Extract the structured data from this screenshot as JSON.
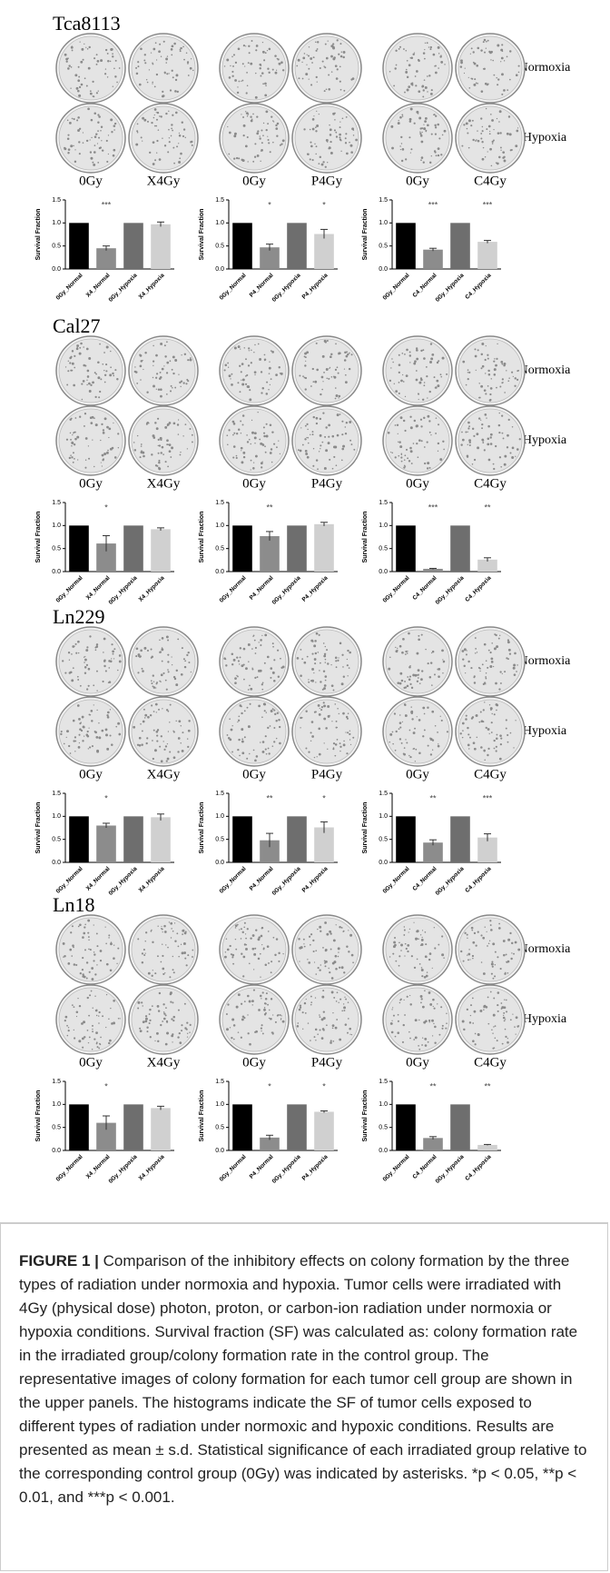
{
  "figure": {
    "panels": [
      {
        "cell_line": "Tca8113",
        "row_labels": [
          "Normoxia",
          "Hypoxia"
        ],
        "dose_labels": [
          [
            "0Gy",
            "X4Gy"
          ],
          [
            "0Gy",
            "P4Gy"
          ],
          [
            "0Gy",
            "C4Gy"
          ]
        ]
      },
      {
        "cell_line": "Cal27",
        "row_labels": [
          "Normoxia",
          "Hypoxia"
        ],
        "dose_labels": [
          [
            "0Gy",
            "X4Gy"
          ],
          [
            "0Gy",
            "P4Gy"
          ],
          [
            "0Gy",
            "C4Gy"
          ]
        ]
      },
      {
        "cell_line": "Ln229",
        "row_labels": [
          "Normoxia",
          "Hypoxia"
        ],
        "dose_labels": [
          [
            "0Gy",
            "X4Gy"
          ],
          [
            "0Gy",
            "P4Gy"
          ],
          [
            "0Gy",
            "C4Gy"
          ]
        ]
      },
      {
        "cell_line": "Ln18",
        "row_labels": [
          "Normoxia",
          "Hypoxia"
        ],
        "dose_labels": [
          [
            "0Gy",
            "X4Gy"
          ],
          [
            "0Gy",
            "P4Gy"
          ],
          [
            "0Gy",
            "C4Gy"
          ]
        ]
      }
    ]
  },
  "chart_data": [
    {
      "type": "bar",
      "y_label": "Survival Fraction",
      "categories": [
        "0Gy_Normal",
        "X4_Normal",
        "0Gy_Hypoxia",
        "X4_Hypoxia"
      ],
      "values": [
        1.0,
        0.45,
        1.0,
        0.97
      ],
      "errors": [
        null,
        0.05,
        null,
        0.05
      ],
      "significance": [
        null,
        "***",
        null,
        null
      ],
      "colors": [
        "#000000",
        "#8c8c8c",
        "#6e6e6e",
        "#d0d0d0"
      ],
      "ylim": [
        0,
        1.5
      ],
      "yticks": [
        {
          "value": 0,
          "label": "0.0"
        },
        {
          "value": 0.5,
          "label": "0.5"
        },
        {
          "value": 1,
          "label": "1.0"
        },
        {
          "value": 1.5,
          "label": "1.5"
        }
      ]
    },
    {
      "type": "bar",
      "y_label": "Survival Fraction",
      "categories": [
        "0Gy_Normal",
        "P4_Normal",
        "0Gy_Hypoxia",
        "P4_Hypoxia"
      ],
      "values": [
        1.0,
        0.47,
        1.0,
        0.76
      ],
      "errors": [
        null,
        0.07,
        null,
        0.1
      ],
      "significance": [
        null,
        "*",
        null,
        "*"
      ],
      "colors": [
        "#000000",
        "#8c8c8c",
        "#6e6e6e",
        "#d0d0d0"
      ],
      "ylim": [
        0,
        1.5
      ],
      "yticks": [
        {
          "value": 0,
          "label": "0.0"
        },
        {
          "value": 0.5,
          "label": "0.5"
        },
        {
          "value": 1,
          "label": "1.0"
        },
        {
          "value": 1.5,
          "label": "1.5"
        }
      ]
    },
    {
      "type": "bar",
      "y_label": "Survival Fraction",
      "categories": [
        "0Gy_Normal",
        "C4_Normal",
        "0Gy_Hypoxia",
        "C4_Hypoxia"
      ],
      "values": [
        1.0,
        0.42,
        1.0,
        0.59
      ],
      "errors": [
        null,
        0.03,
        null,
        0.03
      ],
      "significance": [
        null,
        "***",
        null,
        "***"
      ],
      "colors": [
        "#000000",
        "#8c8c8c",
        "#6e6e6e",
        "#d0d0d0"
      ],
      "ylim": [
        0,
        1.5
      ],
      "yticks": [
        {
          "value": 0,
          "label": "0.0"
        },
        {
          "value": 0.5,
          "label": "0.5"
        },
        {
          "value": 1,
          "label": "1.0"
        },
        {
          "value": 1.5,
          "label": "1.5"
        }
      ]
    },
    {
      "type": "bar",
      "y_label": "Survival Fraction",
      "categories": [
        "0Gy_Normal",
        "X4_Normal",
        "0Gy_Hypoxia",
        "X4_Hypoxia"
      ],
      "values": [
        1.0,
        0.61,
        1.0,
        0.92
      ],
      "errors": [
        null,
        0.17,
        null,
        0.03
      ],
      "significance": [
        null,
        "*",
        null,
        null
      ],
      "colors": [
        "#000000",
        "#8c8c8c",
        "#6e6e6e",
        "#d0d0d0"
      ],
      "ylim": [
        0,
        1.5
      ],
      "yticks": [
        {
          "value": 0,
          "label": "0.0"
        },
        {
          "value": 0.5,
          "label": "0.5"
        },
        {
          "value": 1,
          "label": "1.0"
        },
        {
          "value": 1.5,
          "label": "1.5"
        }
      ]
    },
    {
      "type": "bar",
      "y_label": "Survival Fraction",
      "categories": [
        "0Gy_Normal",
        "P4_Normal",
        "0Gy_Hypoxia",
        "P4_Hypoxia"
      ],
      "values": [
        1.0,
        0.77,
        1.0,
        1.03
      ],
      "errors": [
        null,
        0.1,
        null,
        0.04
      ],
      "significance": [
        null,
        "**",
        null,
        null
      ],
      "colors": [
        "#000000",
        "#8c8c8c",
        "#6e6e6e",
        "#d0d0d0"
      ],
      "ylim": [
        0,
        1.5
      ],
      "yticks": [
        {
          "value": 0,
          "label": "0.0"
        },
        {
          "value": 0.5,
          "label": "0.5"
        },
        {
          "value": 1,
          "label": "1.0"
        },
        {
          "value": 1.5,
          "label": "1.5"
        }
      ]
    },
    {
      "type": "bar",
      "y_label": "Survival Fraction",
      "categories": [
        "0Gy_Normal",
        "C4_Normal",
        "0Gy_Hypoxia",
        "C4_Hypoxia"
      ],
      "values": [
        1.0,
        0.06,
        1.0,
        0.26
      ],
      "errors": [
        null,
        0.01,
        null,
        0.04
      ],
      "significance": [
        null,
        "***",
        null,
        "**"
      ],
      "colors": [
        "#000000",
        "#8c8c8c",
        "#6e6e6e",
        "#d0d0d0"
      ],
      "ylim": [
        0,
        1.5
      ],
      "yticks": [
        {
          "value": 0,
          "label": "0.0"
        },
        {
          "value": 0.5,
          "label": "0.5"
        },
        {
          "value": 1,
          "label": "1.0"
        },
        {
          "value": 1.5,
          "label": "1.5"
        }
      ]
    },
    {
      "type": "bar",
      "y_label": "Survival Fraction",
      "categories": [
        "0Gy_Normal",
        "X4_Normal",
        "0Gy_Hypoxia",
        "X4_Hypoxia"
      ],
      "values": [
        1.0,
        0.8,
        1.0,
        0.98
      ],
      "errors": [
        null,
        0.05,
        null,
        0.07
      ],
      "significance": [
        null,
        "*",
        null,
        null
      ],
      "colors": [
        "#000000",
        "#8c8c8c",
        "#6e6e6e",
        "#d0d0d0"
      ],
      "ylim": [
        0,
        1.5
      ],
      "yticks": [
        {
          "value": 0,
          "label": "0.0"
        },
        {
          "value": 0.5,
          "label": "0.5"
        },
        {
          "value": 1,
          "label": "1.0"
        },
        {
          "value": 1.5,
          "label": "1.5"
        }
      ]
    },
    {
      "type": "bar",
      "y_label": "Survival Fraction",
      "categories": [
        "0Gy_Normal",
        "P4_Normal",
        "0Gy_Hypoxia",
        "P4_Hypoxia"
      ],
      "values": [
        1.0,
        0.48,
        1.0,
        0.76
      ],
      "errors": [
        null,
        0.15,
        null,
        0.12
      ],
      "significance": [
        null,
        "**",
        null,
        "*"
      ],
      "colors": [
        "#000000",
        "#8c8c8c",
        "#6e6e6e",
        "#d0d0d0"
      ],
      "ylim": [
        0,
        1.5
      ],
      "yticks": [
        {
          "value": 0,
          "label": "0.0"
        },
        {
          "value": 0.5,
          "label": "0.5"
        },
        {
          "value": 1,
          "label": "1.0"
        },
        {
          "value": 1.5,
          "label": "1.5"
        }
      ]
    },
    {
      "type": "bar",
      "y_label": "Survival Fraction",
      "categories": [
        "0Gy_Normal",
        "C4_Normal",
        "0Gy_Hypoxia",
        "C4_Hypoxia"
      ],
      "values": [
        1.0,
        0.43,
        1.0,
        0.54
      ],
      "errors": [
        null,
        0.06,
        null,
        0.08
      ],
      "significance": [
        null,
        "**",
        null,
        "***"
      ],
      "colors": [
        "#000000",
        "#8c8c8c",
        "#6e6e6e",
        "#d0d0d0"
      ],
      "ylim": [
        0,
        1.5
      ],
      "yticks": [
        {
          "value": 0,
          "label": "0.0"
        },
        {
          "value": 0.5,
          "label": "0.5"
        },
        {
          "value": 1,
          "label": "1.0"
        },
        {
          "value": 1.5,
          "label": "1.5"
        }
      ]
    },
    {
      "type": "bar",
      "y_label": "Survival Fraction",
      "categories": [
        "0Gy_Normal",
        "X4_Normal",
        "0Gy_Hypoxia",
        "X4_Hypoxia"
      ],
      "values": [
        1.0,
        0.6,
        1.0,
        0.92
      ],
      "errors": [
        null,
        0.15,
        null,
        0.04
      ],
      "significance": [
        null,
        "*",
        null,
        null
      ],
      "colors": [
        "#000000",
        "#8c8c8c",
        "#6e6e6e",
        "#d0d0d0"
      ],
      "ylim": [
        0,
        1.5
      ],
      "yticks": [
        {
          "value": 0,
          "label": "0.0"
        },
        {
          "value": 0.5,
          "label": "0.5"
        },
        {
          "value": 1,
          "label": "1.0"
        },
        {
          "value": 1.5,
          "label": "1.5"
        }
      ]
    },
    {
      "type": "bar",
      "y_label": "Survival Fraction",
      "categories": [
        "0Gy_Normal",
        "P4_Normal",
        "0Gy_Hypoxia",
        "P4_Hypoxia"
      ],
      "values": [
        1.0,
        0.28,
        1.0,
        0.84
      ],
      "errors": [
        null,
        0.05,
        null,
        0.02
      ],
      "significance": [
        null,
        "*",
        null,
        "*"
      ],
      "colors": [
        "#000000",
        "#8c8c8c",
        "#6e6e6e",
        "#d0d0d0"
      ],
      "ylim": [
        0,
        1.5
      ],
      "yticks": [
        {
          "value": 0,
          "label": "0.0"
        },
        {
          "value": 0.5,
          "label": "0.5"
        },
        {
          "value": 1,
          "label": "1.0"
        },
        {
          "value": 1.5,
          "label": "1.5"
        }
      ]
    },
    {
      "type": "bar",
      "y_label": "Survival Fraction",
      "categories": [
        "0Gy_Normal",
        "C4_Normal",
        "0Gy_Hypoxia",
        "C4_Hypoxia"
      ],
      "values": [
        1.0,
        0.27,
        1.0,
        0.12
      ],
      "errors": [
        null,
        0.03,
        null,
        0.01
      ],
      "significance": [
        null,
        "**",
        null,
        "**"
      ],
      "colors": [
        "#000000",
        "#8c8c8c",
        "#6e6e6e",
        "#d0d0d0"
      ],
      "ylim": [
        0,
        1.5
      ],
      "yticks": [
        {
          "value": 0,
          "label": "0.0"
        },
        {
          "value": 0.5,
          "label": "0.5"
        },
        {
          "value": 1,
          "label": "1.0"
        },
        {
          "value": 1.5,
          "label": "1.5"
        }
      ]
    }
  ],
  "caption": {
    "label": "FIGURE 1 |",
    "text": "Comparison of the inhibitory effects on colony formation by the three types of radiation under normoxia and hypoxia. Tumor cells were irradiated with 4Gy (physical dose) photon, proton, or carbon-ion radiation under normoxia or hypoxia conditions. Survival fraction (SF) was calculated as: colony formation rate in the irradiated group/colony formation rate in the control group. The representative images of colony formation for each tumor cell group are shown in the upper panels. The histograms indicate the SF of tumor cells exposed to different types of radiation under normoxic and hypoxic conditions. Results are presented as mean ± s.d. Statistical significance of each irradiated group relative to the corresponding control group (0Gy) was indicated by asterisks. *p < 0.05, **p < 0.01, and ***p < 0.001."
  }
}
